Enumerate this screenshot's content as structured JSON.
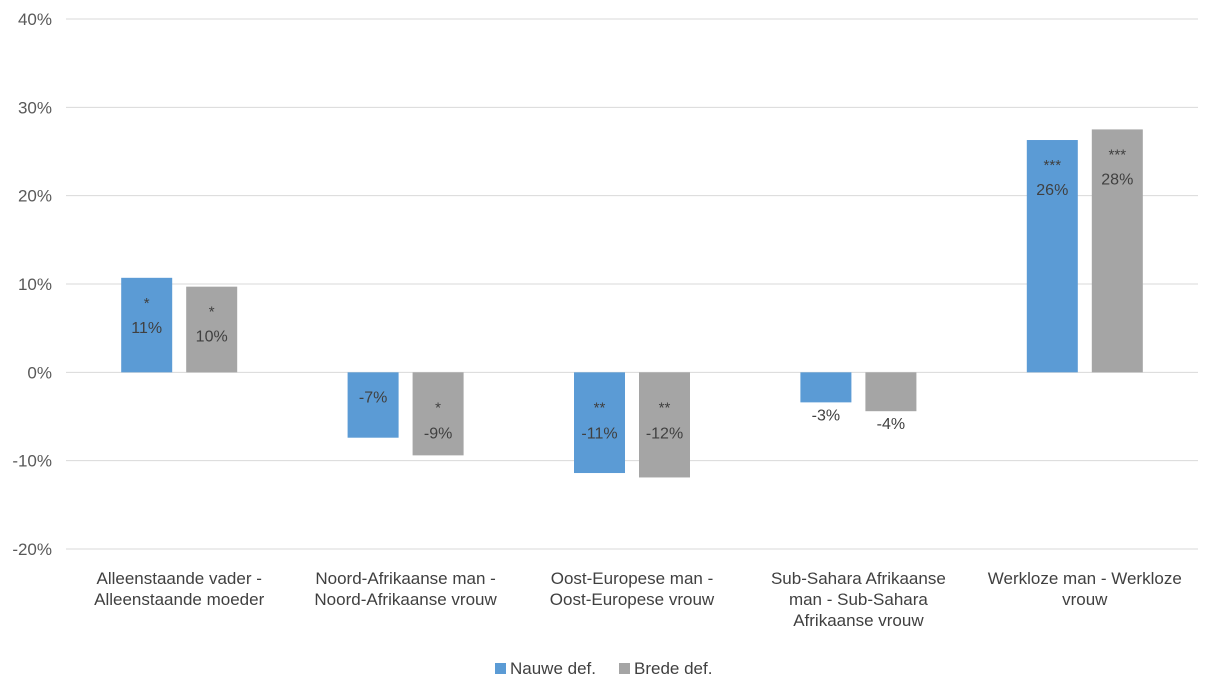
{
  "chart_data": {
    "type": "bar",
    "categories": [
      [
        "Alleenstaande vader -",
        "Alleenstaande moeder"
      ],
      [
        "Noord-Afrikaanse man -",
        "Noord-Afrikaanse vrouw"
      ],
      [
        "Oost-Europese man -",
        "Oost-Europese vrouw"
      ],
      [
        "Sub-Sahara Afrikaanse",
        "man - Sub-Sahara",
        "Afrikaanse vrouw"
      ],
      [
        "Werkloze man - Werkloze",
        "vrouw"
      ]
    ],
    "series": [
      {
        "name": "Nauwe def.",
        "color": "#5b9bd5",
        "values": [
          10.7,
          -7.4,
          -11.4,
          -3.4,
          26.3
        ],
        "labels": [
          "11%",
          "-7%",
          "-11%",
          "-3%",
          "26%"
        ],
        "significance": [
          "*",
          "",
          "**",
          "",
          "***"
        ]
      },
      {
        "name": "Brede def.",
        "color": "#a5a5a5",
        "values": [
          9.7,
          -9.4,
          -11.9,
          -4.4,
          27.5
        ],
        "labels": [
          "10%",
          "-9%",
          "-12%",
          "-4%",
          "28%"
        ],
        "significance": [
          "*",
          "*",
          "**",
          "",
          "***"
        ]
      }
    ],
    "y_ticks": [
      "40%",
      "30%",
      "20%",
      "10%",
      "0%",
      "-10%",
      "-20%"
    ],
    "y_tick_values": [
      40,
      30,
      20,
      10,
      0,
      -10,
      -20
    ],
    "ylim": [
      -20,
      40
    ],
    "grid": true,
    "legend_position": "bottom-center"
  }
}
